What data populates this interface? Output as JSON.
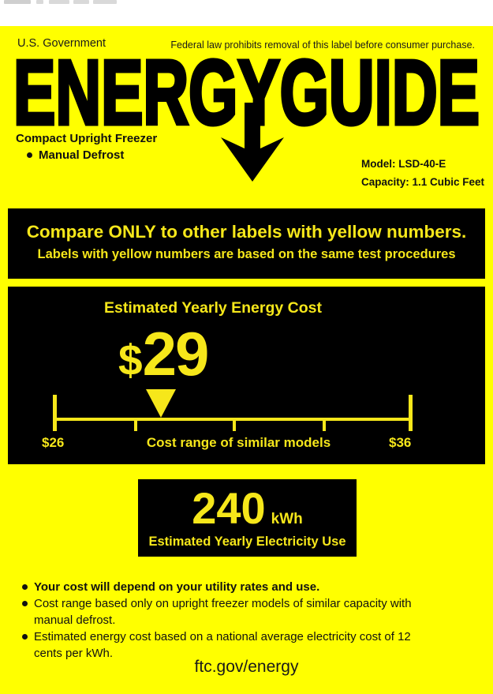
{
  "colors": {
    "label_yellow": "#ffff00",
    "box_black": "#000000",
    "box_text_yellow": "#f6e71a",
    "ink": "#111111"
  },
  "header": {
    "agency": "U.S. Government",
    "legal_notice": "Federal law prohibits removal of this label before consumer purchase."
  },
  "logo": {
    "text": "ENERGYGUIDE"
  },
  "product": {
    "type": "Compact Upright Freezer",
    "feature": "Manual Defrost",
    "model": "Model: LSD-40-E",
    "capacity": "Capacity: 1.1 Cubic Feet"
  },
  "compare_banner": {
    "line1": "Compare ONLY to other labels with yellow numbers.",
    "line2": "Labels with yellow numbers are based on the same test procedures"
  },
  "cost_box": {
    "title": "Estimated Yearly Energy Cost",
    "currency": "$",
    "amount": "29",
    "scale": {
      "min_label": "$26",
      "max_label": "$36",
      "min_value": 26,
      "max_value": 36,
      "marker_value": 29,
      "range_label": "Cost range of similar models"
    }
  },
  "usage_box": {
    "value": "240",
    "unit": "kWh",
    "caption": "Estimated Yearly Electricity Use"
  },
  "notes": [
    "Your cost will depend on your utility rates and use.",
    "Cost range based only on upright freezer models of similar capacity with manual defrost.",
    "Estimated energy cost based on a national average electricity cost of 12 cents per kWh."
  ],
  "footer": {
    "url": "ftc.gov/energy"
  }
}
